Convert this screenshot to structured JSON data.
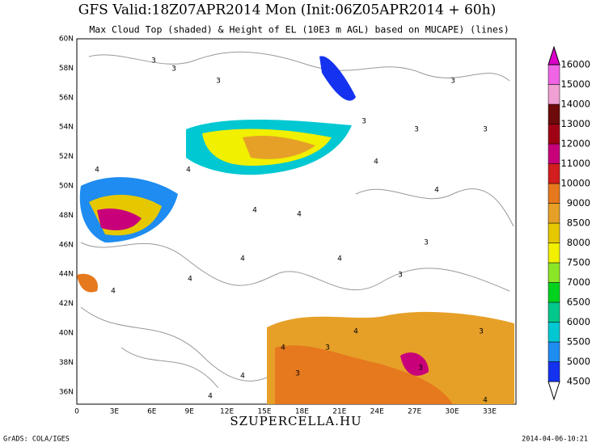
{
  "header": {
    "title": "GFS Valid:18Z07APR2014 Mon (Init:06Z05APR2014 + 60h)",
    "subtitle": "Max Cloud Top (shaded) & Height of EL (10E3 m AGL) based on MUCAPE) (lines)"
  },
  "map": {
    "lat_labels": [
      "60N",
      "58N",
      "56N",
      "54N",
      "52N",
      "50N",
      "48N",
      "46N",
      "44N",
      "42N",
      "40N",
      "38N",
      "36N"
    ],
    "lon_labels": [
      "0",
      "3E",
      "6E",
      "9E",
      "12E",
      "15E",
      "18E",
      "21E",
      "24E",
      "27E",
      "30E",
      "33E"
    ],
    "contour_labels": [
      "3",
      "4"
    ]
  },
  "colorbar": {
    "levels": [
      4500,
      5000,
      5500,
      6000,
      6500,
      7000,
      7500,
      8000,
      8500,
      9000,
      10000,
      11000,
      12000,
      13000,
      14000,
      15000,
      16000
    ],
    "colors": [
      "#1432f0",
      "#1e8cf0",
      "#00c8d2",
      "#00c88c",
      "#00d21e",
      "#8ce628",
      "#f0f000",
      "#e6c800",
      "#e6a028",
      "#e6781e",
      "#d21e1e",
      "#c8007a",
      "#a00014",
      "#6e0a0a",
      "#f0a0d2",
      "#f064e6",
      "#dc00c8"
    ],
    "under_color": "#ffffff"
  },
  "footer": {
    "left": "GrADS: COLA/IGES",
    "center": "SZUPERCELLA.HU",
    "right": "2014-04-06-10:21"
  }
}
